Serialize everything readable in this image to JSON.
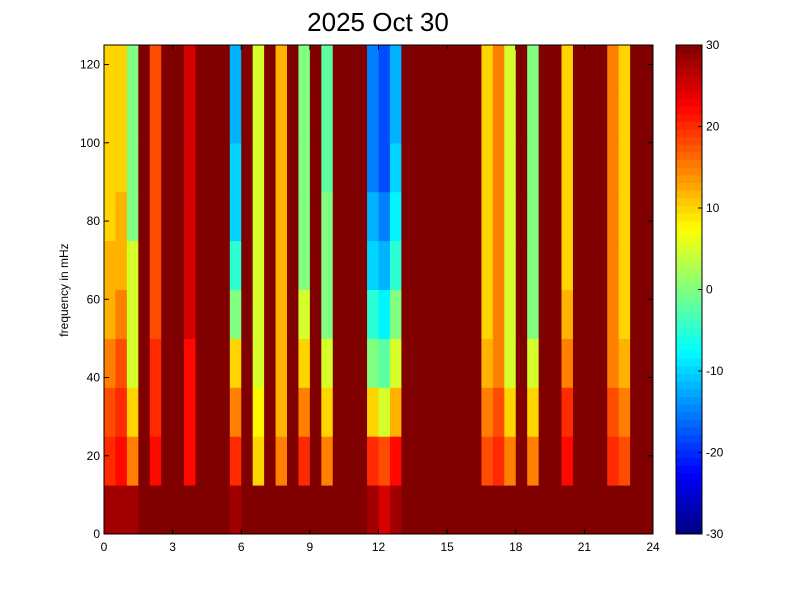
{
  "chart_data": {
    "type": "heatmap",
    "title": "2025 Oct 30",
    "y_label": "frequency in mHz",
    "xlim": [
      0,
      24
    ],
    "xticks": [
      0,
      3,
      6,
      9,
      12,
      15,
      18,
      21,
      24
    ],
    "ylim": [
      0,
      125
    ],
    "yticks": [
      0,
      20,
      40,
      60,
      80,
      100,
      120
    ],
    "clim": [
      -30,
      30
    ],
    "cticks": [
      -30,
      -20,
      -10,
      0,
      10,
      20,
      30
    ],
    "colormap": "jet",
    "values": [
      [
        28,
        28,
        28,
        30,
        30,
        30,
        30,
        30,
        30,
        30,
        30,
        28,
        30,
        30,
        30,
        30,
        30,
        30,
        30,
        30,
        30,
        30,
        30,
        28,
        25,
        28,
        30,
        30,
        30,
        30,
        30,
        30,
        30,
        30,
        30,
        30,
        30,
        30,
        30,
        30,
        30,
        30,
        30,
        30,
        30,
        30,
        30,
        30
      ],
      [
        20,
        22,
        15,
        30,
        22,
        30,
        30,
        22,
        30,
        30,
        30,
        20,
        30,
        10,
        30,
        15,
        30,
        20,
        30,
        15,
        30,
        30,
        30,
        20,
        18,
        22,
        30,
        30,
        30,
        30,
        30,
        30,
        30,
        18,
        20,
        15,
        30,
        15,
        30,
        30,
        22,
        30,
        30,
        30,
        20,
        18,
        30,
        30
      ],
      [
        18,
        20,
        10,
        30,
        20,
        30,
        30,
        22,
        30,
        30,
        30,
        15,
        30,
        8,
        30,
        12,
        30,
        15,
        30,
        10,
        30,
        30,
        30,
        10,
        5,
        12,
        30,
        30,
        30,
        30,
        30,
        30,
        30,
        15,
        18,
        10,
        30,
        10,
        30,
        30,
        20,
        30,
        30,
        30,
        18,
        15,
        30,
        30
      ],
      [
        15,
        18,
        5,
        30,
        20,
        30,
        30,
        22,
        30,
        30,
        30,
        10,
        30,
        5,
        30,
        12,
        30,
        10,
        30,
        5,
        30,
        30,
        30,
        0,
        -2,
        5,
        30,
        30,
        30,
        30,
        30,
        30,
        30,
        12,
        15,
        5,
        30,
        5,
        30,
        30,
        15,
        30,
        30,
        30,
        15,
        12,
        30,
        30
      ],
      [
        12,
        15,
        5,
        30,
        18,
        30,
        30,
        25,
        30,
        30,
        30,
        0,
        30,
        5,
        30,
        12,
        30,
        5,
        30,
        0,
        30,
        30,
        30,
        -5,
        -8,
        0,
        30,
        30,
        30,
        30,
        30,
        30,
        30,
        10,
        15,
        5,
        30,
        0,
        30,
        30,
        12,
        30,
        30,
        30,
        15,
        10,
        30,
        30
      ],
      [
        12,
        12,
        5,
        30,
        18,
        30,
        30,
        25,
        30,
        30,
        30,
        -5,
        30,
        5,
        30,
        12,
        30,
        0,
        30,
        0,
        30,
        30,
        30,
        -10,
        -12,
        -5,
        30,
        30,
        30,
        30,
        30,
        30,
        30,
        10,
        15,
        5,
        30,
        0,
        30,
        30,
        10,
        30,
        30,
        30,
        15,
        10,
        30,
        30
      ],
      [
        10,
        12,
        0,
        30,
        18,
        30,
        30,
        25,
        30,
        30,
        30,
        -10,
        30,
        5,
        30,
        12,
        30,
        0,
        30,
        0,
        30,
        30,
        30,
        -12,
        -15,
        -8,
        30,
        30,
        30,
        30,
        30,
        30,
        30,
        10,
        15,
        5,
        30,
        0,
        30,
        30,
        10,
        30,
        30,
        30,
        15,
        10,
        30,
        30
      ],
      [
        10,
        10,
        0,
        30,
        18,
        30,
        30,
        25,
        30,
        30,
        30,
        -10,
        30,
        5,
        30,
        12,
        30,
        0,
        30,
        -2,
        30,
        30,
        30,
        -15,
        -18,
        -10,
        30,
        30,
        30,
        30,
        30,
        30,
        30,
        10,
        15,
        5,
        30,
        0,
        30,
        30,
        10,
        30,
        30,
        30,
        15,
        10,
        30,
        30
      ],
      [
        10,
        10,
        0,
        30,
        18,
        30,
        30,
        25,
        30,
        30,
        30,
        -12,
        30,
        5,
        30,
        12,
        30,
        0,
        30,
        -2,
        30,
        30,
        30,
        -15,
        -18,
        -12,
        30,
        30,
        30,
        30,
        30,
        30,
        30,
        10,
        15,
        5,
        30,
        0,
        30,
        30,
        10,
        30,
        30,
        30,
        15,
        10,
        30,
        30
      ],
      [
        10,
        10,
        0,
        30,
        18,
        30,
        30,
        25,
        30,
        30,
        30,
        -12,
        30,
        5,
        30,
        12,
        30,
        0,
        30,
        -2,
        30,
        30,
        30,
        -15,
        -18,
        -12,
        30,
        30,
        30,
        30,
        30,
        30,
        30,
        10,
        15,
        5,
        30,
        0,
        30,
        30,
        10,
        30,
        30,
        30,
        15,
        10,
        30,
        30
      ]
    ]
  }
}
